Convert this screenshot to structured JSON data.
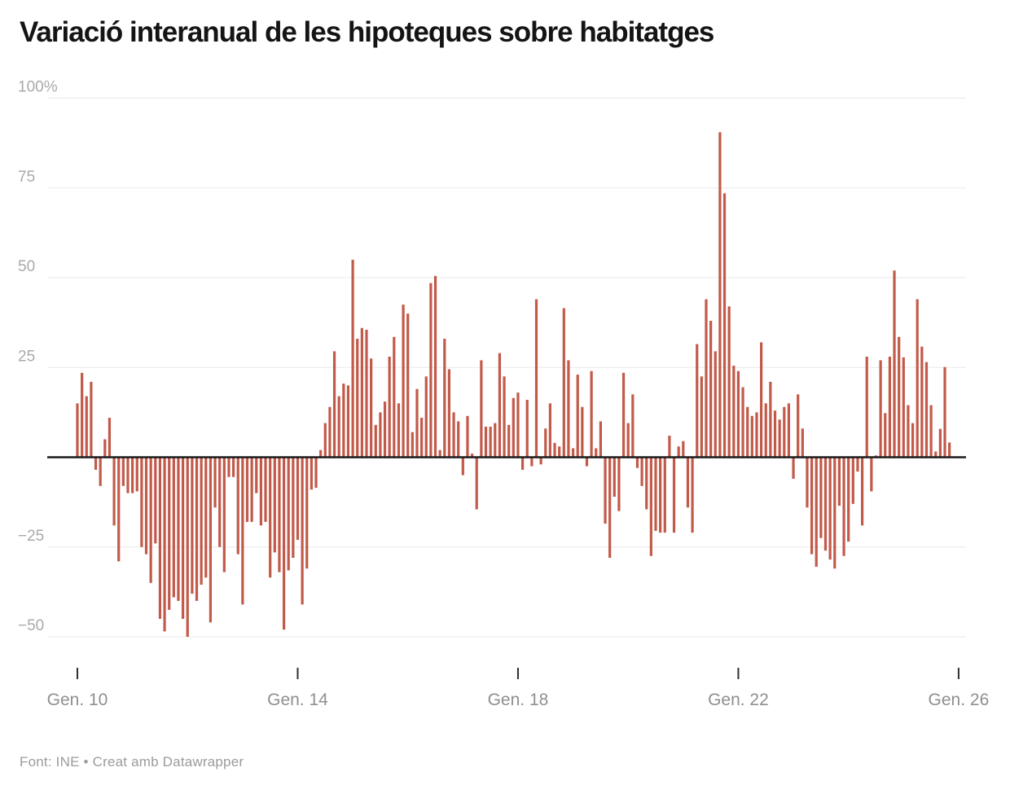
{
  "chart": {
    "title": "Variació interanual de les hipoteques sobre habitatges",
    "source": "Font: INE • Creat amb Datawrapper"
  },
  "chart_data": {
    "type": "bar",
    "title": "Variació interanual de les hipoteques sobre habitatges",
    "unit": "%",
    "frequency": "monthly",
    "start": "Gener 2010",
    "end": "Novembre 2025",
    "grid": true,
    "bar_color": "#c25a4a",
    "zero_line_color": "#191919",
    "gridline_color": "#e9e9e9",
    "y_label_color": "#a9a9a9",
    "x_label_color": "#8f8f8f",
    "ylim": [
      -55,
      103
    ],
    "y_ticks": [
      100,
      75,
      50,
      25,
      -25,
      -50
    ],
    "y_tick_labels": [
      "100%",
      "75",
      "50",
      "25",
      "−25",
      "−50"
    ],
    "x_tick_labels": [
      "Gen. 10",
      "Gen. 14",
      "Gen. 18",
      "Gen. 22",
      "Gen. 26"
    ],
    "x_tick_month_index": [
      0,
      48,
      96,
      144,
      192
    ],
    "values": [
      15,
      23.5,
      17,
      21,
      -3.5,
      -8,
      5,
      11,
      -19,
      -29,
      -8,
      -10,
      -10,
      -9.5,
      -25,
      -27,
      -35,
      -24,
      -45,
      -48.5,
      -42.5,
      -39,
      -40,
      -45,
      -50,
      -38,
      -40,
      -35.5,
      -33.5,
      -46,
      -14,
      -25,
      -32,
      -5.5,
      -5.5,
      -27,
      -41,
      -18,
      -18,
      -10,
      -19,
      -18,
      -33.5,
      -26.5,
      -32,
      -48,
      -31.5,
      -28,
      -23,
      -41,
      -31,
      -9,
      -8.5,
      2,
      9.5,
      14,
      29.5,
      17,
      20.5,
      20,
      55,
      33,
      36,
      35.5,
      27.5,
      9,
      12.5,
      15.5,
      28,
      33.5,
      15,
      42.5,
      40,
      7,
      19,
      11,
      22.5,
      48.5,
      50.5,
      2,
      33,
      24.5,
      12.5,
      10,
      -5,
      11.5,
      1,
      -14.5,
      27,
      8.5,
      8.5,
      9.5,
      29,
      22.5,
      9,
      16.5,
      18,
      -3.5,
      16,
      -2.5,
      44,
      -2,
      8,
      15,
      4,
      3,
      41.5,
      27,
      2.5,
      23,
      14,
      -2.5,
      24,
      2.5,
      10,
      -18.5,
      -28,
      -11,
      -15,
      23.5,
      9.5,
      17.5,
      -3,
      -8,
      -14.5,
      -27.5,
      -20.5,
      -21,
      -21,
      6,
      -21,
      3,
      4.5,
      -14,
      -21,
      31.5,
      22.5,
      44,
      38,
      29.5,
      90.5,
      73.5,
      42,
      25.5,
      24,
      19.5,
      14,
      11.5,
      12.5,
      32,
      15,
      21,
      13,
      10.5,
      14,
      15,
      -6,
      17.5,
      8,
      -14,
      -27,
      -30.5,
      -22.5,
      -26,
      -28.5,
      -31,
      -13.5,
      -27.5,
      -23.5,
      -13,
      -4,
      -19,
      28,
      -9.5,
      0.5,
      27,
      12.3,
      28,
      52,
      33.5,
      27.8,
      14.5,
      9.5,
      44,
      30.8,
      26.5,
      14.5,
      1.6,
      7.9,
      25.1,
      4.1
    ]
  }
}
